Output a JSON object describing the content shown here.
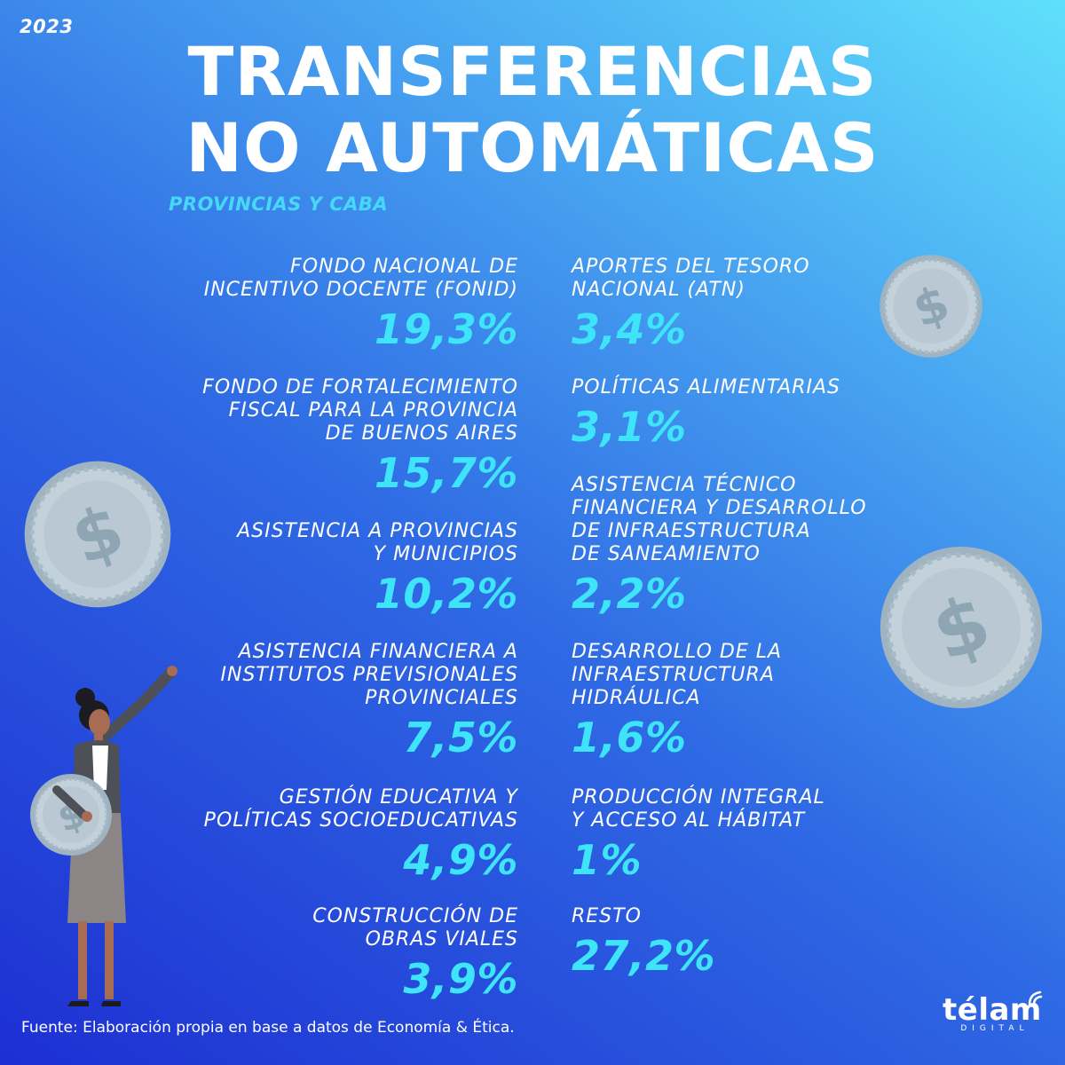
{
  "year": "2023",
  "title": {
    "line1": "TRANSFERENCIAS",
    "line2": "NO AUTOMÁTICAS"
  },
  "subtitle": "PROVINCIAS Y CABA",
  "left_items": [
    {
      "label": "FONDO NACIONAL DE\nINCENTIVO DOCENTE (FONID)",
      "value": "19,3%"
    },
    {
      "label": "FONDO DE FORTALECIMIENTO\nFISCAL PARA LA PROVINCIA\nDE BUENOS AIRES",
      "value": "15,7%"
    },
    {
      "label": "ASISTENCIA A PROVINCIAS\nY MUNICIPIOS",
      "value": "10,2%"
    },
    {
      "label": "ASISTENCIA FINANCIERA A\nINSTITUTOS PREVISIONALES\nPROVINCIALES",
      "value": "7,5%"
    },
    {
      "label": "GESTIÓN EDUCATIVA Y\nPOLÍTICAS SOCIOEDUCATIVAS",
      "value": "4,9%"
    },
    {
      "label": "CONSTRUCCIÓN DE\nOBRAS VIALES",
      "value": "3,9%"
    }
  ],
  "right_items": [
    {
      "label": "APORTES DEL TESORO\nNACIONAL (ATN)",
      "value": "3,4%"
    },
    {
      "label": "POLÍTICAS ALIMENTARIAS",
      "value": "3,1%"
    },
    {
      "label": "ASISTENCIA TÉCNICO\nFINANCIERA Y DESARROLLO\nDE INFRAESTRUCTURA\nDE SANEAMIENTO",
      "value": "2,2%"
    },
    {
      "label": "DESARROLLO DE LA\nINFRAESTRUCTURA\nHIDRÁULICA",
      "value": "1,6%"
    },
    {
      "label": "PRODUCCIÓN INTEGRAL\nY ACCESO AL HÁBITAT",
      "value": "1%"
    },
    {
      "label": "RESTO",
      "value": "27,2%"
    }
  ],
  "source": "Fuente: Elaboración propia en base a datos de Economía & Ética.",
  "logo": {
    "word": "télam",
    "sub": "DIGITAL"
  },
  "colors": {
    "value": "#3ee4f8",
    "subtitle": "#45d9f7",
    "coin": "#b9c8d2",
    "coin_dark": "#8ea6b4"
  },
  "icons": [
    "dollar-coin-icon",
    "woman-holding-coin-illustration",
    "telam-signal-icon"
  ]
}
